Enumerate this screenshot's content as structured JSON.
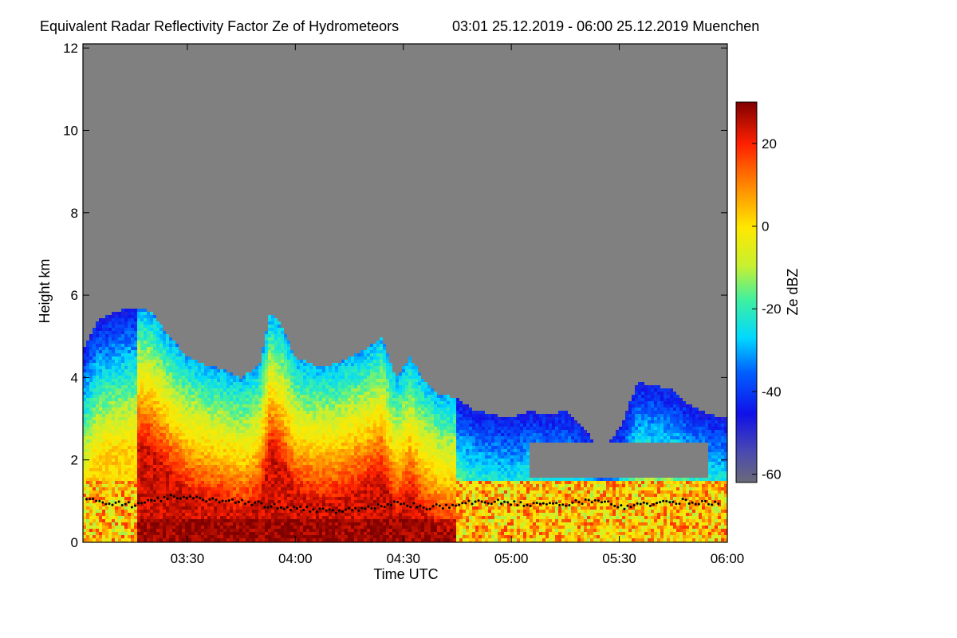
{
  "chart_data": {
    "type": "heatmap",
    "title": "Equivalent Radar Reflectivity Factor Ze of Hydrometeors",
    "subtitle": "03:01 25.12.2019 - 06:00 25.12.2019 Muenchen",
    "xlabel": "Time UTC",
    "ylabel": "Height km",
    "colorbar_label": "Ze dBZ",
    "x_start_min": 181,
    "x_end_min": 360,
    "xlim_min": [
      181,
      360
    ],
    "x_ticks": [
      {
        "min": 210,
        "label": "03:30"
      },
      {
        "min": 240,
        "label": "04:00"
      },
      {
        "min": 270,
        "label": "04:30"
      },
      {
        "min": 300,
        "label": "05:00"
      },
      {
        "min": 330,
        "label": "05:30"
      },
      {
        "min": 360,
        "label": "06:00"
      }
    ],
    "ylim_km": [
      0,
      12.1
    ],
    "y_ticks": [
      {
        "km": 0,
        "label": "0"
      },
      {
        "km": 2,
        "label": "2"
      },
      {
        "km": 4,
        "label": "4"
      },
      {
        "km": 6,
        "label": "6"
      },
      {
        "km": 8,
        "label": "8"
      },
      {
        "km": 10,
        "label": "10"
      },
      {
        "km": 12,
        "label": "12"
      }
    ],
    "colorbar_range_dbz": [
      -62,
      30
    ],
    "colorbar_ticks": [
      {
        "dbz": 20,
        "label": "20"
      },
      {
        "dbz": 0,
        "label": "0"
      },
      {
        "dbz": -20,
        "label": "-20"
      },
      {
        "dbz": -40,
        "label": "-40"
      },
      {
        "dbz": -60,
        "label": "-60"
      }
    ],
    "no_data_color": "#808080",
    "colormap": [
      {
        "dbz": -62,
        "color": "#6a6a78"
      },
      {
        "dbz": -55,
        "color": "#4a4ab0"
      },
      {
        "dbz": -45,
        "color": "#1010e8"
      },
      {
        "dbz": -35,
        "color": "#0060ff"
      },
      {
        "dbz": -27,
        "color": "#00d8ff"
      },
      {
        "dbz": -18,
        "color": "#40f0a0"
      },
      {
        "dbz": -10,
        "color": "#c8f030"
      },
      {
        "dbz": 0,
        "color": "#ffe800"
      },
      {
        "dbz": 10,
        "color": "#ff8800"
      },
      {
        "dbz": 20,
        "color": "#ff2000"
      },
      {
        "dbz": 30,
        "color": "#800000"
      }
    ],
    "echo_top_km": [
      {
        "t": 181,
        "top": 4.7
      },
      {
        "t": 185,
        "top": 5.4
      },
      {
        "t": 190,
        "top": 5.6
      },
      {
        "t": 196,
        "top": 5.7
      },
      {
        "t": 200,
        "top": 5.6
      },
      {
        "t": 205,
        "top": 5.0
      },
      {
        "t": 210,
        "top": 4.5
      },
      {
        "t": 215,
        "top": 4.3
      },
      {
        "t": 220,
        "top": 4.2
      },
      {
        "t": 225,
        "top": 4.0
      },
      {
        "t": 230,
        "top": 4.3
      },
      {
        "t": 233,
        "top": 5.6
      },
      {
        "t": 236,
        "top": 5.3
      },
      {
        "t": 240,
        "top": 4.5
      },
      {
        "t": 245,
        "top": 4.3
      },
      {
        "t": 250,
        "top": 4.3
      },
      {
        "t": 255,
        "top": 4.5
      },
      {
        "t": 260,
        "top": 4.7
      },
      {
        "t": 264,
        "top": 5.0
      },
      {
        "t": 268,
        "top": 4.0
      },
      {
        "t": 272,
        "top": 4.5
      },
      {
        "t": 276,
        "top": 3.9
      },
      {
        "t": 280,
        "top": 3.6
      },
      {
        "t": 285,
        "top": 3.5
      },
      {
        "t": 290,
        "top": 3.2
      },
      {
        "t": 295,
        "top": 3.1
      },
      {
        "t": 300,
        "top": 3.0
      },
      {
        "t": 305,
        "top": 3.2
      },
      {
        "t": 310,
        "top": 3.1
      },
      {
        "t": 315,
        "top": 3.2
      },
      {
        "t": 320,
        "top": 2.8
      },
      {
        "t": 325,
        "top": 2.2
      },
      {
        "t": 331,
        "top": 2.9
      },
      {
        "t": 335,
        "top": 3.9
      },
      {
        "t": 340,
        "top": 3.8
      },
      {
        "t": 345,
        "top": 3.7
      },
      {
        "t": 350,
        "top": 3.3
      },
      {
        "t": 355,
        "top": 3.1
      },
      {
        "t": 360,
        "top": 3.0
      }
    ],
    "cloud_base_km": [
      {
        "t": 181,
        "base": 1.1
      },
      {
        "t": 188,
        "base": 0.95
      },
      {
        "t": 196,
        "base": 0.9
      },
      {
        "t": 205,
        "base": 1.1
      },
      {
        "t": 212,
        "base": 1.05
      },
      {
        "t": 220,
        "base": 1.0
      },
      {
        "t": 228,
        "base": 0.95
      },
      {
        "t": 236,
        "base": 0.85
      },
      {
        "t": 244,
        "base": 0.8
      },
      {
        "t": 252,
        "base": 0.75
      },
      {
        "t": 260,
        "base": 0.85
      },
      {
        "t": 268,
        "base": 0.95
      },
      {
        "t": 276,
        "base": 0.85
      },
      {
        "t": 284,
        "base": 0.9
      },
      {
        "t": 292,
        "base": 1.0
      },
      {
        "t": 300,
        "base": 0.95
      },
      {
        "t": 308,
        "base": 0.9
      },
      {
        "t": 316,
        "base": 0.95
      },
      {
        "t": 324,
        "base": 1.0
      },
      {
        "t": 332,
        "base": 0.85
      },
      {
        "t": 340,
        "base": 0.95
      },
      {
        "t": 348,
        "base": 1.0
      },
      {
        "t": 356,
        "base": 0.95
      }
    ]
  }
}
